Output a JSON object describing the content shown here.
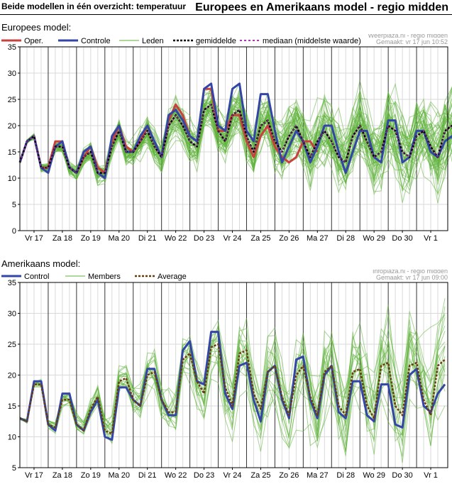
{
  "header": {
    "left_title": "Beide modellen in één overzicht: temperatuur",
    "right_title": "Europees en Amerikaans model - regio midden"
  },
  "ecmwf": {
    "section_label": "Europees model:",
    "source": "Weerplaza.nl - regio midden",
    "made": "Gemaakt: vr 17 jun 10:52",
    "legend": {
      "oper": "Oper.",
      "controle": "Controle",
      "leden": "Leden",
      "gemiddelde": "gemiddelde",
      "mediaan": "mediaan (middelste waarde)"
    }
  },
  "gfs": {
    "section_label": "Amerikaans model:",
    "source": "Infoplaza.nl - regio midden",
    "made": "Gemaakt: vr 17 jun 09:00",
    "legend": {
      "control": "Control",
      "members": "Members",
      "average": "Average"
    }
  },
  "colors": {
    "oper": "#c8413c",
    "control": "#3346a8",
    "members": "#5fb33a",
    "mean": "#000000",
    "mean_gfs": "#6a3a10",
    "median": "#b035b8",
    "grid": "#d9d9d9",
    "daydivider": "#333333"
  },
  "chart_data": [
    {
      "type": "line",
      "title": "Europees model",
      "xlabel": "",
      "ylabel": "",
      "ylim": [
        0,
        35
      ],
      "yticks": [
        0,
        5,
        10,
        15,
        20,
        25,
        30,
        35
      ],
      "grid": true,
      "legend_position": "top",
      "x_step_hours": 6,
      "day_labels": [
        "Vr 17",
        "Za 18",
        "Zo 19",
        "Ma 20",
        "Di 21",
        "Wo 22",
        "Do 23",
        "Vr 24",
        "Za 25",
        "Zo 26",
        "Ma 27",
        "Di 28",
        "Wo 29",
        "Do 30",
        "Vr 1"
      ],
      "series": [
        {
          "name": "Oper.",
          "values": [
            13,
            17,
            18,
            12,
            12,
            17,
            17,
            12,
            11,
            14,
            16,
            12,
            11,
            17,
            20,
            16,
            15,
            17,
            20,
            17,
            14,
            21,
            24,
            22,
            18,
            17,
            27,
            27,
            19,
            19,
            22,
            22,
            17,
            14,
            18,
            20,
            16,
            14,
            13,
            14,
            17,
            17,
            15
          ],
          "note": "operational run (~10 days)"
        },
        {
          "name": "Controle",
          "values": [
            13,
            17,
            18,
            12,
            11,
            16,
            17,
            12,
            11,
            15,
            16,
            11,
            10,
            18,
            20,
            15,
            15,
            18,
            20,
            17,
            14,
            22,
            23,
            21,
            18,
            17,
            27,
            28,
            20,
            19,
            27,
            28,
            19,
            17,
            26,
            26,
            19,
            13,
            16,
            19,
            17,
            13,
            16,
            20,
            20,
            15,
            11,
            15,
            19,
            19,
            14,
            13,
            21,
            21,
            13,
            14,
            19,
            19,
            15,
            14,
            17,
            18,
            14
          ]
        },
        {
          "name": "gemiddelde",
          "values": [
            13,
            17,
            18,
            12,
            12,
            16,
            16,
            12,
            11,
            14,
            15,
            11,
            11,
            16,
            19,
            15,
            15,
            17,
            19,
            16,
            14,
            20,
            22,
            20,
            17,
            16,
            23,
            24,
            19,
            17,
            22,
            23,
            18,
            15,
            20,
            21,
            17,
            15,
            18,
            20,
            17,
            14,
            17,
            19,
            17,
            14,
            13,
            18,
            20,
            17,
            14,
            15,
            20,
            19,
            15,
            14,
            18,
            19,
            16,
            14,
            19,
            20,
            15
          ]
        },
        {
          "name": "mediaan (middelste waarde)",
          "values": [
            13,
            17,
            18,
            12,
            12,
            16,
            16,
            12,
            11,
            14,
            15,
            11,
            11,
            16,
            19,
            15,
            15,
            17,
            19,
            16,
            14,
            20,
            22,
            20,
            17,
            16,
            23,
            24,
            19,
            17,
            22,
            23,
            18,
            15,
            20,
            21,
            17,
            15,
            18,
            20,
            17,
            14,
            17,
            19,
            17,
            14,
            13,
            18,
            20,
            17,
            14,
            15,
            20,
            19,
            15,
            14,
            18,
            19,
            16,
            14,
            19,
            20,
            15
          ]
        }
      ],
      "members": {
        "name": "Leden",
        "count": 50,
        "spread_base": 0.5,
        "spread_growth": 0.17
      }
    },
    {
      "type": "line",
      "title": "Amerikaans model",
      "xlabel": "",
      "ylabel": "",
      "ylim": [
        5,
        35
      ],
      "yticks": [
        5,
        10,
        15,
        20,
        25,
        30,
        35
      ],
      "grid": true,
      "legend_position": "top",
      "x_step_hours": 6,
      "day_labels": [
        "Vr 17",
        "Za 18",
        "Zo 19",
        "Ma 20",
        "Di 21",
        "Wo 22",
        "Do 23",
        "Vr 24",
        "Za 25",
        "Zo 26",
        "Ma 27",
        "Di 28",
        "Wo 29",
        "Do 30",
        "Vr 1"
      ],
      "series": [
        {
          "name": "Control",
          "values": [
            13,
            12.5,
            19,
            19,
            12,
            11,
            17,
            17,
            12,
            11,
            14,
            16,
            10,
            9.5,
            18,
            18,
            16,
            15,
            21,
            21,
            16,
            13.5,
            13.5,
            24,
            25.5,
            19,
            18.5,
            27,
            27,
            17,
            14.5,
            21.5,
            22,
            16,
            12.5,
            20.5,
            21.5,
            16,
            13,
            22.5,
            23,
            16,
            13,
            20,
            21.5,
            14,
            13,
            19,
            19,
            13.5,
            12.5,
            18.5,
            18.5,
            12,
            11.5,
            20,
            21,
            15,
            14,
            17,
            18.5
          ]
        },
        {
          "name": "Average",
          "values": [
            13,
            12.5,
            18.5,
            18.5,
            12,
            11.5,
            16,
            16,
            12,
            11,
            14.5,
            16.5,
            11,
            10.5,
            19,
            19.5,
            16,
            15,
            20,
            20.5,
            16,
            14,
            14,
            22.5,
            23.5,
            19,
            17,
            24.5,
            25,
            18,
            15,
            23.5,
            24,
            17,
            14.5,
            20.5,
            21.5,
            16.5,
            13.5,
            20,
            21.5,
            16.5,
            13.5,
            20.5,
            21.5,
            15,
            13.5,
            20.5,
            21,
            15,
            13,
            21.5,
            22,
            15,
            13.5,
            21.5,
            22,
            16,
            13.5,
            21.5,
            22.5
          ]
        }
      ],
      "members": {
        "name": "Members",
        "count": 20,
        "spread_base": 0.5,
        "spread_growth": 0.2
      }
    }
  ]
}
